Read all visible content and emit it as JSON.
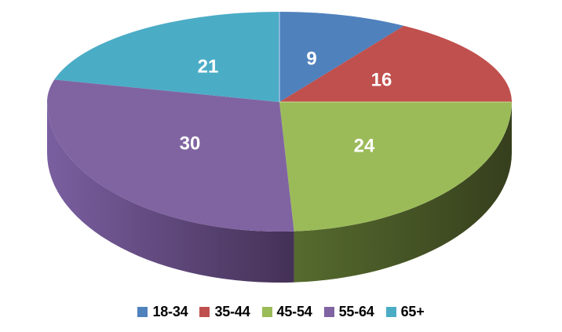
{
  "chart_data": {
    "type": "pie",
    "projection": "3d",
    "categories": [
      "18-34",
      "35-44",
      "45-54",
      "55-64",
      "65+"
    ],
    "values": [
      9,
      16,
      24,
      30,
      21
    ],
    "total": 100,
    "colors": [
      "#4F81BD",
      "#C0504D",
      "#9BBB59",
      "#8064A2",
      "#4BACC6"
    ],
    "side_gradients": {
      "2": [
        "#566B2E",
        "#363F1D"
      ],
      "3": [
        "#7A5FA0",
        "#443156"
      ]
    },
    "data_labels": [
      "9",
      "16",
      "24",
      "30",
      "21"
    ],
    "data_label_color": "#FFFFFF",
    "start_angle_deg": 0,
    "direction": "clockwise",
    "legend_position": "bottom",
    "legend_text_color": "#000000",
    "background": "#FFFFFF"
  }
}
